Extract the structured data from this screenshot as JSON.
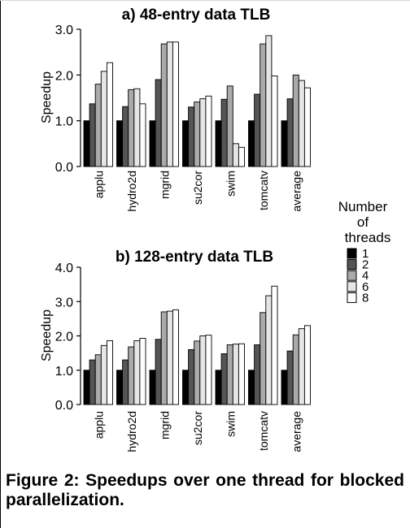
{
  "caption": "Figure 2: Speedups over one thread for blocked parallelization.",
  "legend": {
    "title_lines": [
      "Number",
      "of",
      "threads"
    ],
    "entries": [
      "1",
      "2",
      "4",
      "6",
      "8"
    ]
  },
  "colors": {
    "series": [
      "#000000",
      "#555555",
      "#aaaaaa",
      "#e6e6e6",
      "#ffffff"
    ],
    "stroke": "#000000"
  },
  "chart_data": [
    {
      "type": "bar",
      "title": "a) 48-entry data TLB",
      "ylabel": "Speedup",
      "xlabel": "",
      "ylim": [
        0,
        3
      ],
      "yticks": [
        "0.0",
        "1.0",
        "2.0",
        "3.0"
      ],
      "grid": false,
      "legend_position": "right",
      "categories": [
        "applu",
        "hydro2d",
        "mgrid",
        "su2cor",
        "swim",
        "tomcatv",
        "average"
      ],
      "series": [
        {
          "name": "1",
          "values": [
            1.0,
            1.0,
            1.0,
            1.0,
            1.0,
            1.0,
            1.0
          ]
        },
        {
          "name": "2",
          "values": [
            1.37,
            1.31,
            1.9,
            1.3,
            1.47,
            1.58,
            1.48
          ]
        },
        {
          "name": "4",
          "values": [
            1.8,
            1.68,
            2.68,
            1.41,
            1.76,
            2.68,
            2.0
          ]
        },
        {
          "name": "6",
          "values": [
            2.08,
            1.7,
            2.72,
            1.48,
            0.5,
            2.86,
            1.88
          ]
        },
        {
          "name": "8",
          "values": [
            2.27,
            1.37,
            2.72,
            1.54,
            0.42,
            1.98,
            1.72
          ]
        }
      ]
    },
    {
      "type": "bar",
      "title": "b) 128-entry data TLB",
      "ylabel": "Speedup",
      "xlabel": "",
      "ylim": [
        0,
        4
      ],
      "yticks": [
        "0.0",
        "1.0",
        "2.0",
        "3.0",
        "4.0"
      ],
      "grid": false,
      "legend_position": "right",
      "categories": [
        "applu",
        "hydro2d",
        "mgrid",
        "su2cor",
        "swim",
        "tomcatv",
        "average"
      ],
      "series": [
        {
          "name": "1",
          "values": [
            1.0,
            1.0,
            1.0,
            1.0,
            1.0,
            1.0,
            1.0
          ]
        },
        {
          "name": "2",
          "values": [
            1.3,
            1.3,
            1.9,
            1.6,
            1.48,
            1.74,
            1.56
          ]
        },
        {
          "name": "4",
          "values": [
            1.45,
            1.68,
            2.7,
            1.85,
            1.74,
            2.68,
            2.03
          ]
        },
        {
          "name": "6",
          "values": [
            1.72,
            1.86,
            2.72,
            2.0,
            1.76,
            3.17,
            2.21
          ]
        },
        {
          "name": "8",
          "values": [
            1.86,
            1.93,
            2.76,
            2.02,
            1.77,
            3.45,
            2.3
          ]
        }
      ]
    }
  ]
}
